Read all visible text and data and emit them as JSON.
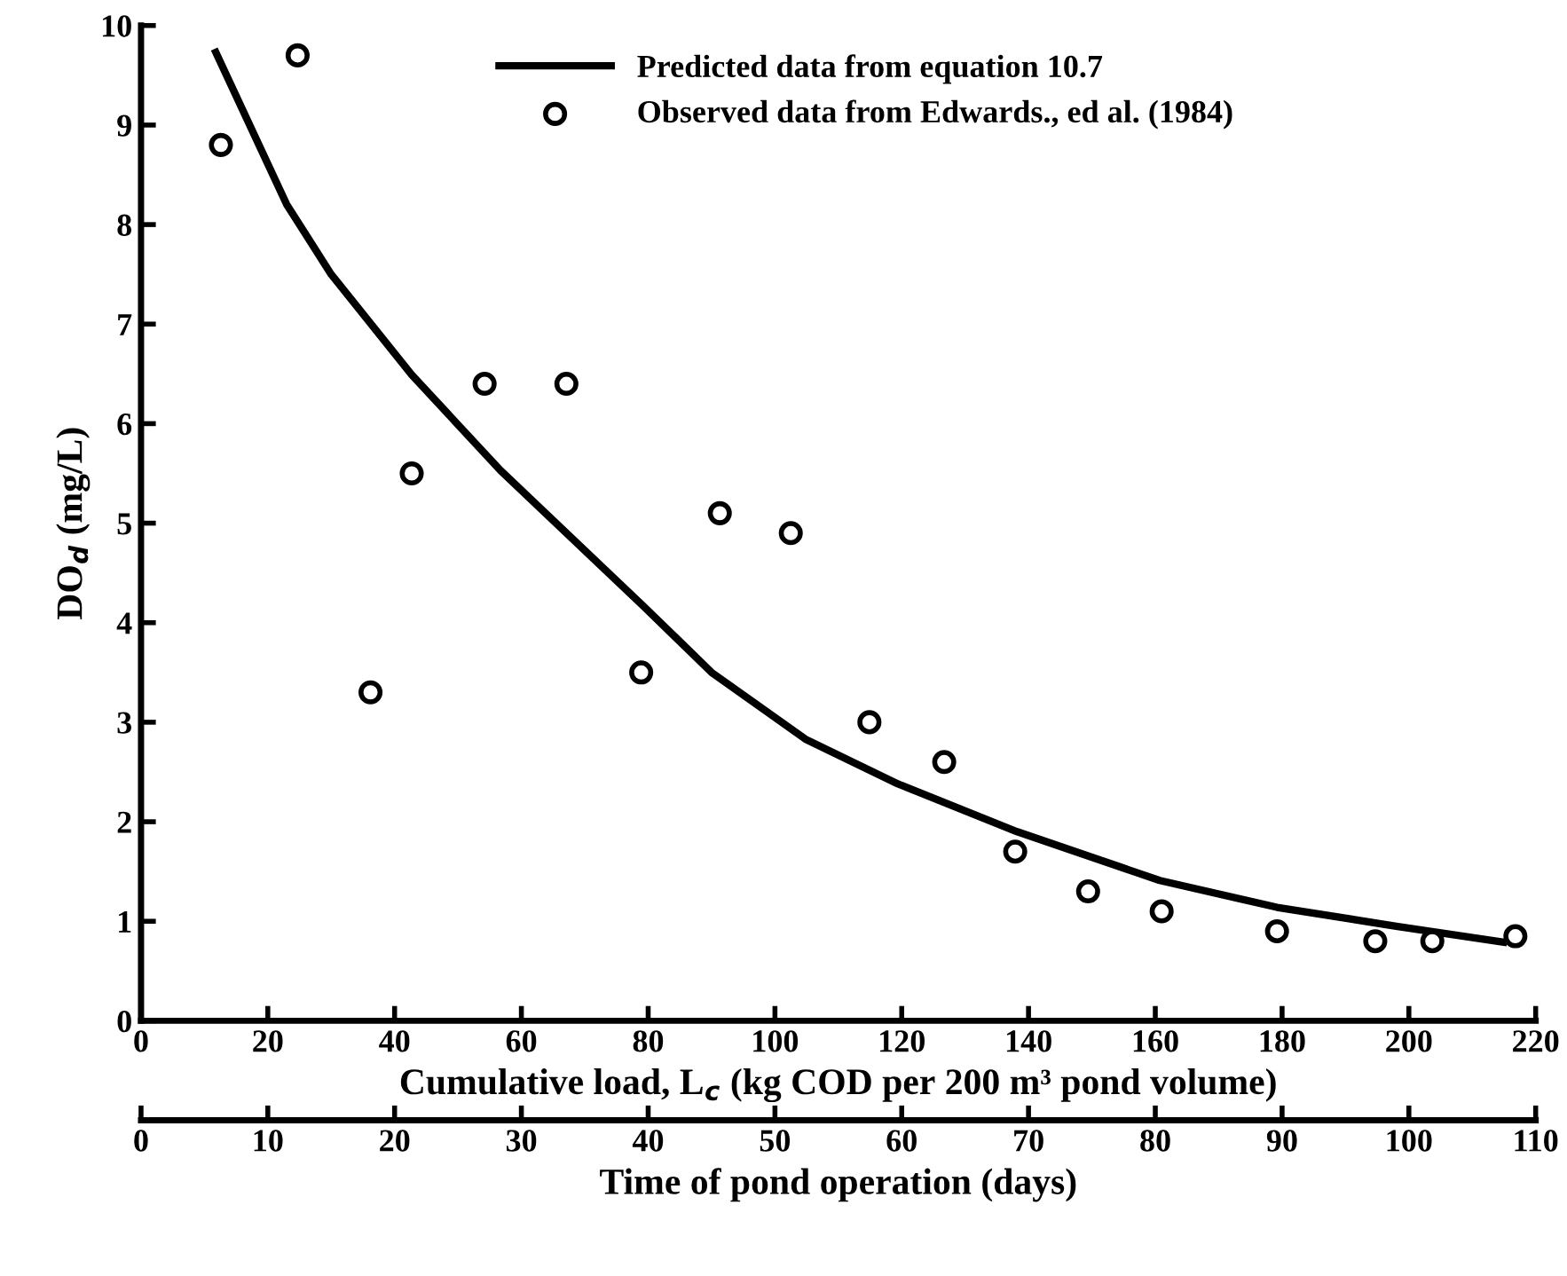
{
  "chart_data": {
    "type": "scatter",
    "xlabel": "Cumulative load, L$_{c}$ (kg COD per 200 m³ pond volume)",
    "ylabel": "DO$_{d}$ (mg/L)",
    "x2label": "Time of pond operation (days)",
    "xlim": [
      0,
      220
    ],
    "xticks": [
      0,
      20,
      40,
      60,
      80,
      100,
      120,
      140,
      160,
      180,
      200,
      220
    ],
    "ylim": [
      0,
      10
    ],
    "yticks": [
      0,
      1,
      2,
      3,
      4,
      5,
      6,
      7,
      8,
      9,
      10
    ],
    "x2lim": [
      0,
      110
    ],
    "x2ticks": [
      0,
      10,
      20,
      30,
      40,
      50,
      60,
      70,
      80,
      90,
      100,
      110
    ],
    "legend": "top",
    "grid": false,
    "series": [
      {
        "name": "Predicted data from equation 10.7",
        "type": "line",
        "color": "#000000",
        "line_style": "solid",
        "marker": "none",
        "x": [
          11.8,
          23,
          30,
          42.7,
          56.7,
          79.2,
          90,
          104.8,
          119.4,
          138.2,
          160.7,
          179.2,
          198,
          214.9
        ],
        "values": [
          9.73,
          8.2,
          7.5,
          6.49,
          5.53,
          4.17,
          3.5,
          2.83,
          2.38,
          1.9,
          1.41,
          1.14,
          0.95,
          0.79
        ]
      },
      {
        "name": "Observed data from Edwards., ed al. (1984)",
        "color": "#000000",
        "marker": "circle",
        "x": [
          12.6,
          24.7,
          36.2,
          42.7,
          54.2,
          67.1,
          78.9,
          91.3,
          102.5,
          114.9,
          126.7,
          137.9,
          149.4,
          161,
          179.2,
          194.7,
          203.7,
          216.8
        ],
        "values": [
          8.8,
          9.7,
          3.3,
          5.5,
          6.4,
          6.4,
          3.5,
          5.1,
          4.9,
          3.0,
          2.6,
          1.7,
          1.3,
          1.1,
          0.9,
          0.8,
          0.8,
          0.85
        ]
      }
    ]
  }
}
